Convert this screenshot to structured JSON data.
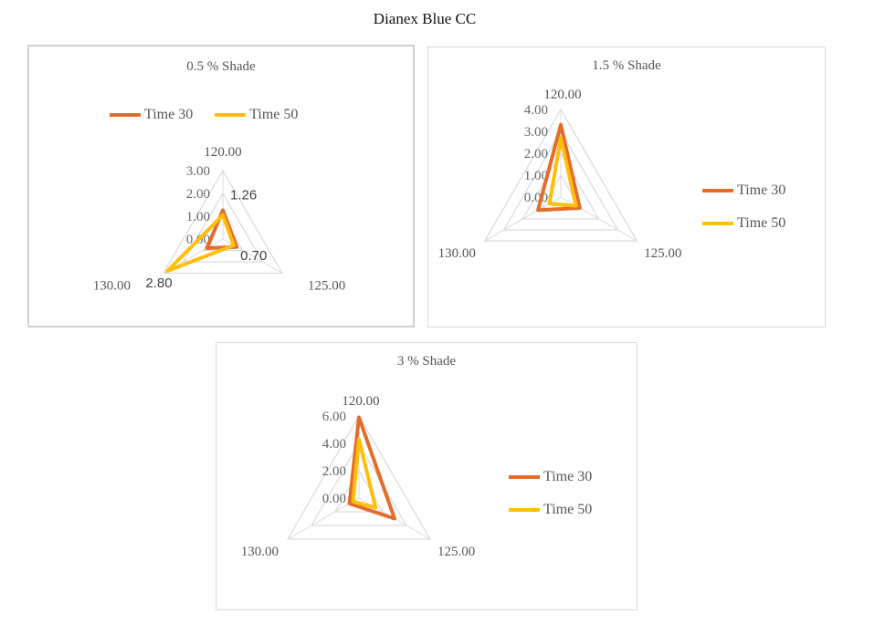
{
  "title": "Dianex Blue CC",
  "colors": {
    "series1": "#E46C2B",
    "series2": "#FFBE0A",
    "grid": "#d9d9d9"
  },
  "chart_data": [
    {
      "type": "radar",
      "title": "0.5 % Shade",
      "categories": [
        "120.00",
        "125.00",
        "130.00"
      ],
      "rmax": 3,
      "ticks": [
        "0.00",
        "1.00",
        "2.00",
        "3.00"
      ],
      "legend_position": "top",
      "series": [
        {
          "name": "Time 30",
          "values": [
            1.26,
            0.7,
            0.8
          ]
        },
        {
          "name": "Time 50",
          "values": [
            1.05,
            0.55,
            2.8
          ]
        }
      ],
      "data_labels": [
        "1.26",
        "0.70",
        "2.80"
      ]
    },
    {
      "type": "radar",
      "title": "1.5 % Shade",
      "categories": [
        "120.00",
        "125.00",
        "130.00"
      ],
      "rmax": 4,
      "ticks": [
        "0.00",
        "1.00",
        "2.00",
        "3.00",
        "4.00"
      ],
      "legend_position": "right",
      "series": [
        {
          "name": "Time 30",
          "values": [
            3.3,
            1.0,
            1.2
          ]
        },
        {
          "name": "Time 50",
          "values": [
            2.7,
            0.8,
            0.6
          ]
        }
      ]
    },
    {
      "type": "radar",
      "title": "3 % Shade",
      "categories": [
        "120.00",
        "125.00",
        "130.00"
      ],
      "rmax": 6,
      "ticks": [
        "0.00",
        "2.00",
        "4.00",
        "6.00"
      ],
      "legend_position": "right",
      "series": [
        {
          "name": "Time 30",
          "values": [
            5.9,
            3.0,
            0.8
          ]
        },
        {
          "name": "Time 50",
          "values": [
            4.3,
            1.4,
            0.5
          ]
        }
      ]
    }
  ]
}
